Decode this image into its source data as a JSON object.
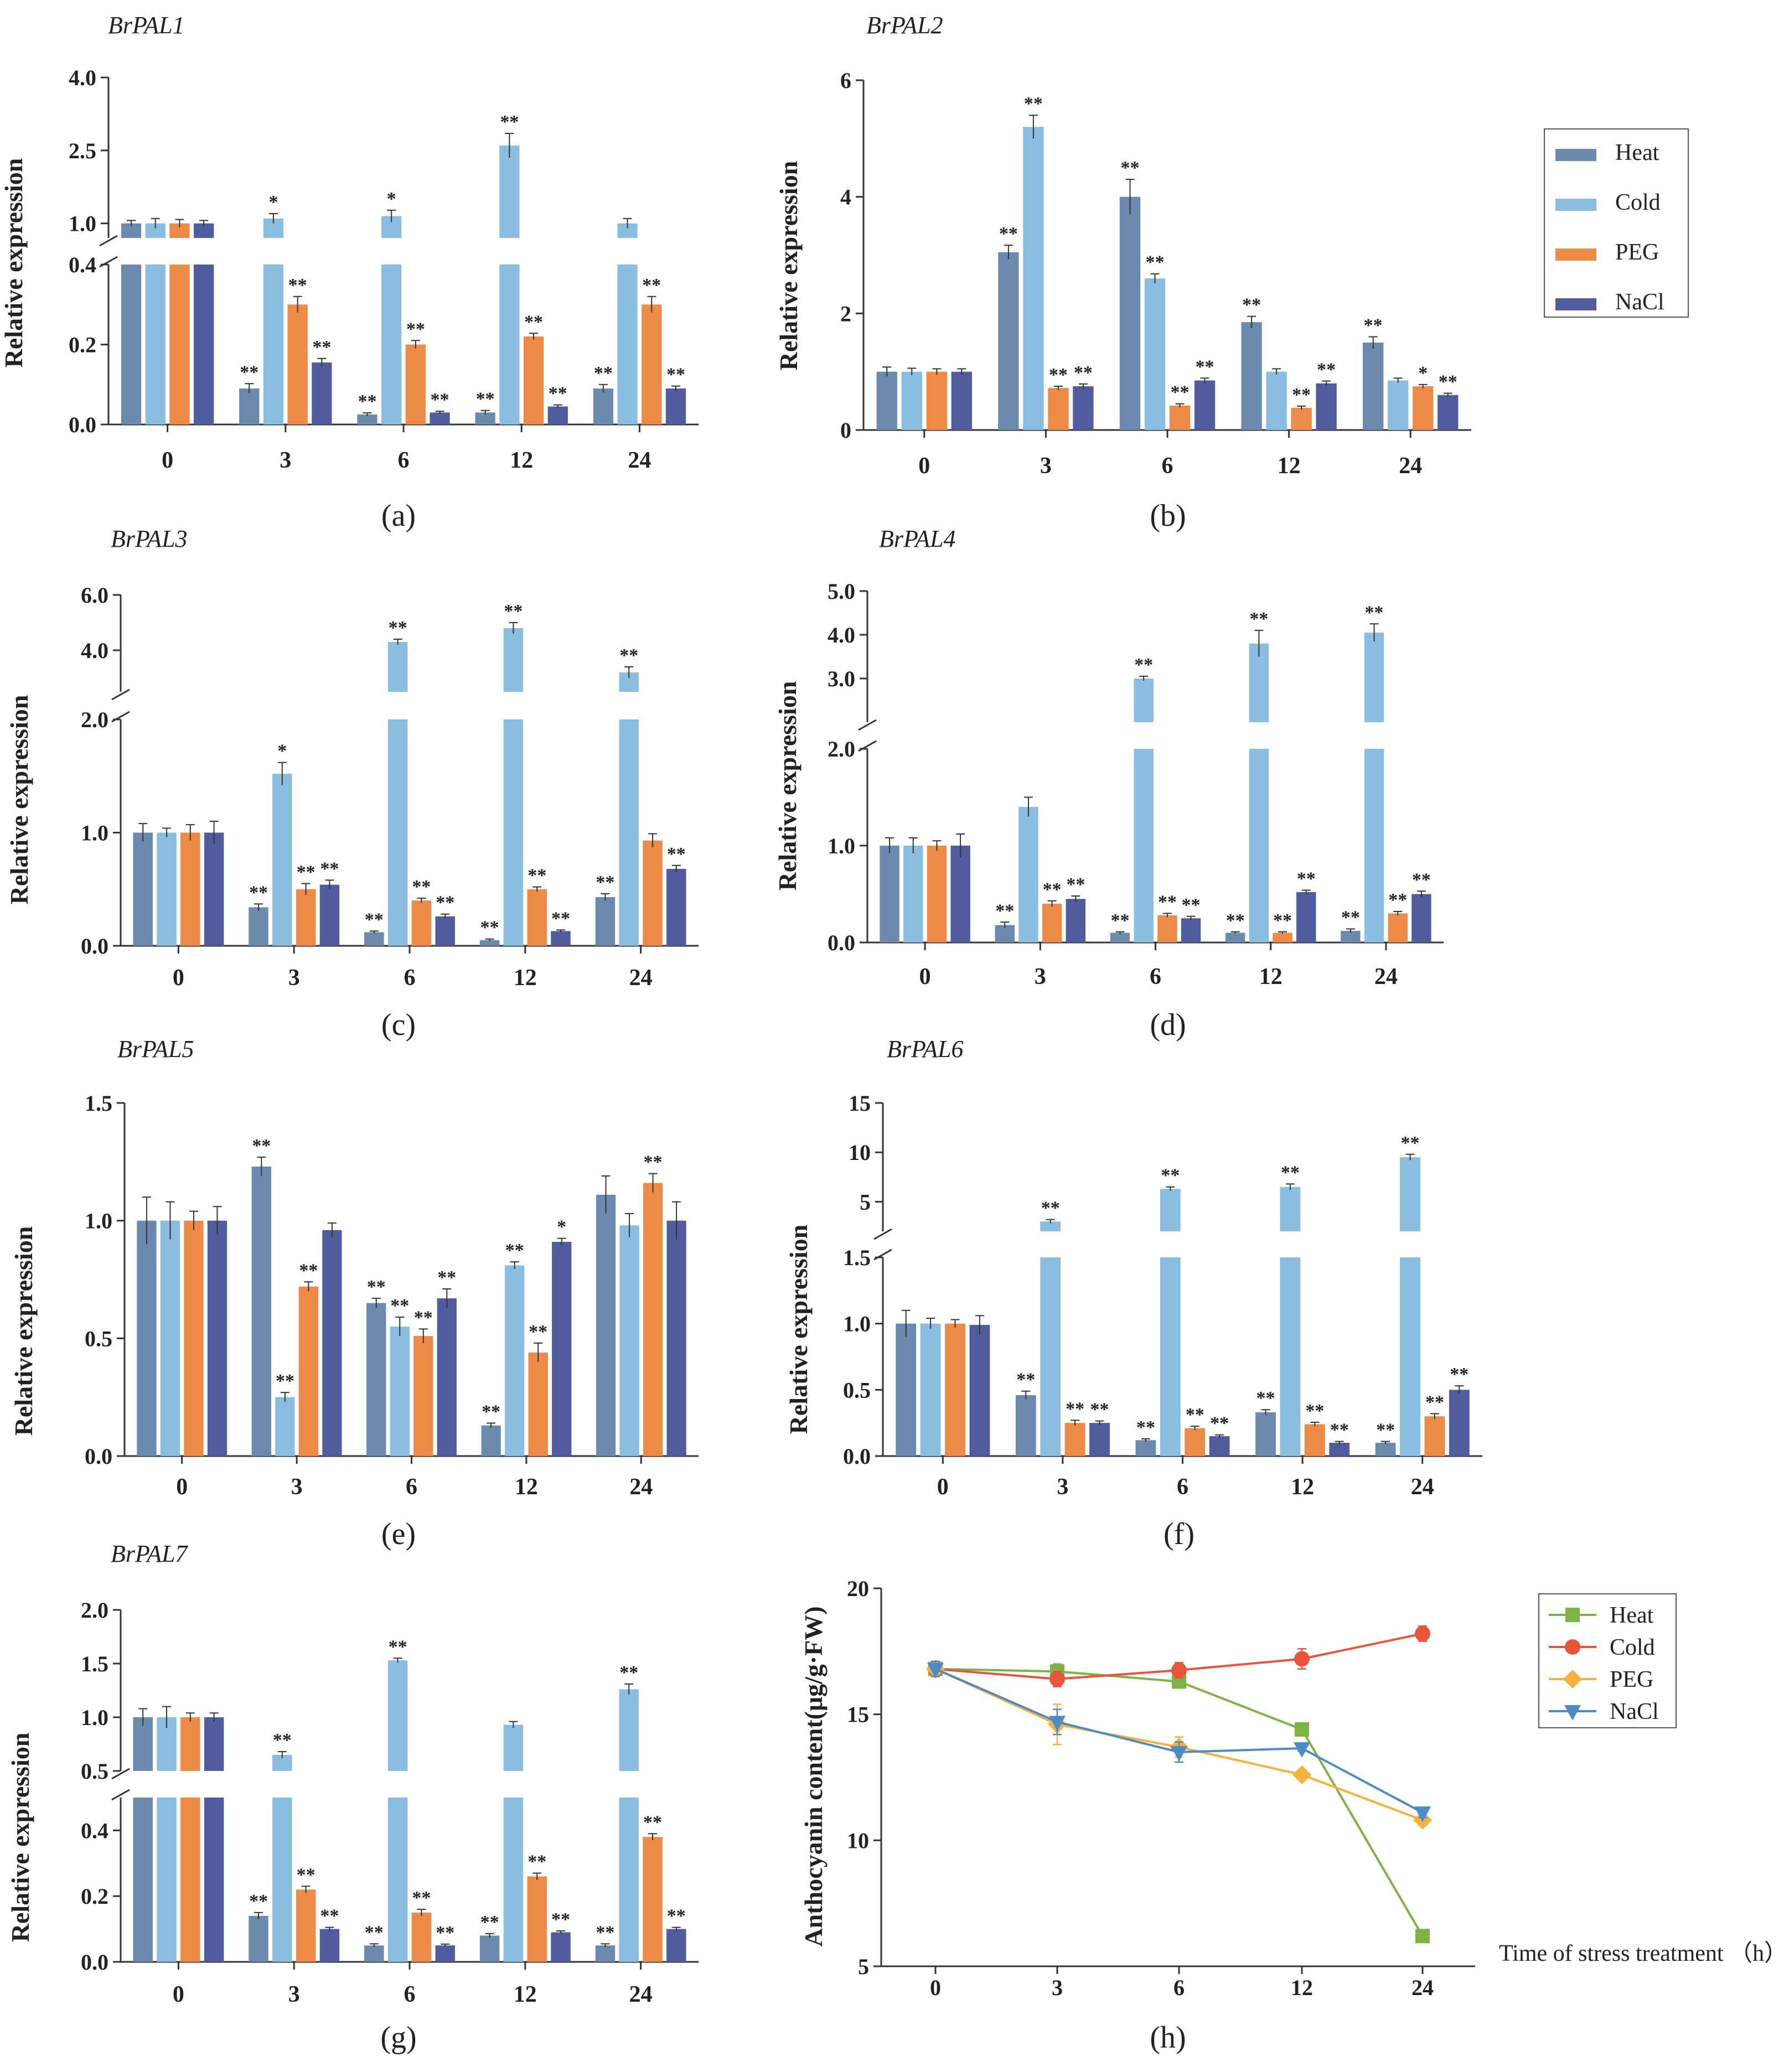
{
  "colors": {
    "Heat": "#6c89ae",
    "Cold": "#8bbde0",
    "PEG": "#ee8a48",
    "NaCl": "#505c9e"
  },
  "line_colors": {
    "Heat": "#7cb342",
    "Cold": "#e8553b",
    "PEG": "#f6b23b",
    "NaCl": "#4c8bc4"
  },
  "chart_data": [
    {
      "id": "a",
      "type": "bar",
      "title": "BrPAL1",
      "label": "(a)",
      "ylabel": "Relative expression",
      "categories": [
        "0",
        "3",
        "6",
        "12",
        "24"
      ],
      "segments": [
        {
          "range": [
            0,
            0.4
          ],
          "ticks": [
            0.0,
            0.2,
            0.4
          ],
          "tick_labels": [
            "0.0",
            "0.2",
            "0.4"
          ]
        },
        {
          "range": [
            0.7,
            4.0
          ],
          "ticks": [
            1.0,
            2.5,
            4.0
          ],
          "tick_labels": [
            "1.0",
            "2.5",
            "4.0"
          ]
        }
      ],
      "series": [
        {
          "name": "Heat",
          "values": [
            1.0,
            0.09,
            0.025,
            0.03,
            0.09
          ],
          "errors": [
            0.06,
            0.012,
            0.004,
            0.005,
            0.01
          ],
          "sig": [
            "",
            "**",
            "**",
            "**",
            "**"
          ]
        },
        {
          "name": "Cold",
          "values": [
            1.0,
            1.1,
            1.15,
            2.6,
            1.0
          ],
          "errors": [
            0.1,
            0.1,
            0.12,
            0.25,
            0.1
          ],
          "sig": [
            "",
            "*",
            "*",
            "**",
            ""
          ]
        },
        {
          "name": "PEG",
          "values": [
            1.0,
            0.3,
            0.2,
            0.22,
            0.3
          ],
          "errors": [
            0.08,
            0.02,
            0.01,
            0.008,
            0.02
          ],
          "sig": [
            "",
            "**",
            "**",
            "**",
            "**"
          ]
        },
        {
          "name": "NaCl",
          "values": [
            1.0,
            0.155,
            0.03,
            0.045,
            0.09
          ],
          "errors": [
            0.06,
            0.01,
            0.003,
            0.004,
            0.006
          ],
          "sig": [
            "",
            "**",
            "**",
            "**",
            "**"
          ]
        }
      ]
    },
    {
      "id": "b",
      "type": "bar",
      "title": "BrPAL2",
      "label": "(b)",
      "ylabel": "Relative expression",
      "categories": [
        "0",
        "3",
        "6",
        "12",
        "24"
      ],
      "segments": [
        {
          "range": [
            0,
            6
          ],
          "ticks": [
            0,
            2,
            4,
            6
          ],
          "tick_labels": [
            "0",
            "2",
            "4",
            "6"
          ]
        }
      ],
      "series": [
        {
          "name": "Heat",
          "values": [
            1.0,
            3.05,
            4.0,
            1.85,
            1.5
          ],
          "errors": [
            0.08,
            0.12,
            0.3,
            0.1,
            0.1
          ],
          "sig": [
            "",
            "**",
            "**",
            "**",
            "**"
          ]
        },
        {
          "name": "Cold",
          "values": [
            1.0,
            5.2,
            2.6,
            1.0,
            0.85
          ],
          "errors": [
            0.06,
            0.2,
            0.08,
            0.05,
            0.04
          ],
          "sig": [
            "",
            "**",
            "**",
            "",
            ""
          ]
        },
        {
          "name": "PEG",
          "values": [
            1.0,
            0.72,
            0.42,
            0.38,
            0.75
          ],
          "errors": [
            0.05,
            0.03,
            0.03,
            0.03,
            0.03
          ],
          "sig": [
            "",
            "**",
            "**",
            "**",
            "*"
          ]
        },
        {
          "name": "NaCl",
          "values": [
            1.0,
            0.75,
            0.85,
            0.8,
            0.6
          ],
          "errors": [
            0.05,
            0.04,
            0.04,
            0.04,
            0.03
          ],
          "sig": [
            "",
            "**",
            "**",
            "**",
            "**"
          ]
        }
      ]
    },
    {
      "id": "c",
      "type": "bar",
      "title": "BrPAL3",
      "label": "(c)",
      "ylabel": "Relative expression",
      "categories": [
        "0",
        "3",
        "6",
        "12",
        "24"
      ],
      "segments": [
        {
          "range": [
            0,
            2.0
          ],
          "ticks": [
            0.0,
            1.0,
            2.0
          ],
          "tick_labels": [
            "0.0",
            "1.0",
            "2.0"
          ]
        },
        {
          "range": [
            2.5,
            6.0
          ],
          "ticks": [
            4.0,
            6.0
          ],
          "tick_labels": [
            "4.0",
            "6.0"
          ]
        }
      ],
      "series": [
        {
          "name": "Heat",
          "values": [
            1.0,
            0.34,
            0.12,
            0.05,
            0.43
          ],
          "errors": [
            0.08,
            0.03,
            0.01,
            0.01,
            0.03
          ],
          "sig": [
            "",
            "**",
            "**",
            "**",
            "**"
          ]
        },
        {
          "name": "Cold",
          "values": [
            1.0,
            1.52,
            4.3,
            4.8,
            3.2
          ],
          "errors": [
            0.04,
            0.1,
            0.1,
            0.2,
            0.2
          ],
          "sig": [
            "",
            "*",
            "**",
            "**",
            "**"
          ]
        },
        {
          "name": "PEG",
          "values": [
            1.0,
            0.5,
            0.4,
            0.5,
            0.93
          ],
          "errors": [
            0.07,
            0.05,
            0.02,
            0.02,
            0.06
          ],
          "sig": [
            "",
            "**",
            "**",
            "**",
            ""
          ]
        },
        {
          "name": "NaCl",
          "values": [
            1.0,
            0.54,
            0.26,
            0.13,
            0.68
          ],
          "errors": [
            0.1,
            0.04,
            0.02,
            0.01,
            0.03
          ],
          "sig": [
            "",
            "**",
            "**",
            "**",
            "**"
          ]
        }
      ]
    },
    {
      "id": "d",
      "type": "bar",
      "title": "BrPAL4",
      "label": "(d)",
      "ylabel": "Relative expression",
      "categories": [
        "0",
        "3",
        "6",
        "12",
        "24"
      ],
      "segments": [
        {
          "range": [
            0,
            2.0
          ],
          "ticks": [
            0.0,
            1.0,
            2.0
          ],
          "tick_labels": [
            "0.0",
            "1.0",
            "2.0"
          ]
        },
        {
          "range": [
            2.0,
            5.0
          ],
          "ticks": [
            3.0,
            4.0,
            5.0
          ],
          "tick_labels": [
            "3.0",
            "4.0",
            "5.0"
          ]
        }
      ],
      "series": [
        {
          "name": "Heat",
          "values": [
            1.0,
            0.18,
            0.1,
            0.1,
            0.12
          ],
          "errors": [
            0.08,
            0.03,
            0.01,
            0.01,
            0.02
          ],
          "sig": [
            "",
            "**",
            "**",
            "**",
            "**"
          ]
        },
        {
          "name": "Cold",
          "values": [
            1.0,
            1.4,
            3.0,
            3.8,
            4.05
          ],
          "errors": [
            0.08,
            0.1,
            0.05,
            0.3,
            0.2
          ],
          "sig": [
            "",
            "",
            "**",
            "**",
            "**"
          ]
        },
        {
          "name": "PEG",
          "values": [
            1.0,
            0.4,
            0.28,
            0.1,
            0.3
          ],
          "errors": [
            0.05,
            0.03,
            0.02,
            0.01,
            0.02
          ],
          "sig": [
            "",
            "**",
            "**",
            "**",
            "**"
          ]
        },
        {
          "name": "NaCl",
          "values": [
            1.0,
            0.45,
            0.25,
            0.52,
            0.5
          ],
          "errors": [
            0.12,
            0.03,
            0.02,
            0.02,
            0.03
          ],
          "sig": [
            "",
            "**",
            "**",
            "**",
            "**"
          ]
        }
      ]
    },
    {
      "id": "e",
      "type": "bar",
      "title": "BrPAL5",
      "label": "(e)",
      "ylabel": "Relative expression",
      "categories": [
        "0",
        "3",
        "6",
        "12",
        "24"
      ],
      "segments": [
        {
          "range": [
            0,
            1.5
          ],
          "ticks": [
            0.0,
            0.5,
            1.0,
            1.5
          ],
          "tick_labels": [
            "0.0",
            "0.5",
            "1.0",
            "1.5"
          ]
        }
      ],
      "series": [
        {
          "name": "Heat",
          "values": [
            1.0,
            1.23,
            0.65,
            0.13,
            1.11
          ],
          "errors": [
            0.1,
            0.04,
            0.02,
            0.01,
            0.08
          ],
          "sig": [
            "",
            "**",
            "**",
            "**",
            ""
          ]
        },
        {
          "name": "Cold",
          "values": [
            1.0,
            0.25,
            0.55,
            0.81,
            0.98
          ],
          "errors": [
            0.08,
            0.02,
            0.04,
            0.015,
            0.05
          ],
          "sig": [
            "",
            "**",
            "**",
            "**",
            ""
          ]
        },
        {
          "name": "PEG",
          "values": [
            1.0,
            0.72,
            0.51,
            0.44,
            1.16
          ],
          "errors": [
            0.04,
            0.02,
            0.03,
            0.04,
            0.04
          ],
          "sig": [
            "",
            "**",
            "**",
            "**",
            "**"
          ]
        },
        {
          "name": "NaCl",
          "values": [
            1.0,
            0.96,
            0.67,
            0.91,
            1.0
          ],
          "errors": [
            0.06,
            0.03,
            0.04,
            0.015,
            0.08
          ],
          "sig": [
            "",
            "",
            "**",
            "*",
            ""
          ]
        }
      ]
    },
    {
      "id": "f",
      "type": "bar",
      "title": "BrPAL6",
      "label": "(f)",
      "ylabel": "Relative expression",
      "categories": [
        "0",
        "3",
        "6",
        "12",
        "24"
      ],
      "segments": [
        {
          "range": [
            0,
            1.5
          ],
          "ticks": [
            0.0,
            0.5,
            1.0,
            1.5
          ],
          "tick_labels": [
            "0.0",
            "0.5",
            "1.0",
            "1.5"
          ]
        },
        {
          "range": [
            2.0,
            15.0
          ],
          "ticks": [
            5,
            10,
            15
          ],
          "tick_labels": [
            "5",
            "10",
            "15"
          ]
        }
      ],
      "series": [
        {
          "name": "Heat",
          "values": [
            1.0,
            0.46,
            0.12,
            0.33,
            0.1
          ],
          "errors": [
            0.1,
            0.03,
            0.01,
            0.02,
            0.01
          ],
          "sig": [
            "",
            "**",
            "**",
            "**",
            "**"
          ]
        },
        {
          "name": "Cold",
          "values": [
            1.0,
            3.0,
            6.3,
            6.5,
            9.5
          ],
          "errors": [
            0.04,
            0.2,
            0.2,
            0.3,
            0.3
          ],
          "sig": [
            "",
            "**",
            "**",
            "**",
            "**"
          ]
        },
        {
          "name": "PEG",
          "values": [
            1.0,
            0.25,
            0.21,
            0.24,
            0.3
          ],
          "errors": [
            0.03,
            0.02,
            0.015,
            0.015,
            0.02
          ],
          "sig": [
            "",
            "**",
            "**",
            "**",
            "**"
          ]
        },
        {
          "name": "NaCl",
          "values": [
            0.99,
            0.25,
            0.15,
            0.1,
            0.5
          ],
          "errors": [
            0.07,
            0.015,
            0.01,
            0.01,
            0.03
          ],
          "sig": [
            "",
            "**",
            "**",
            "**",
            "**"
          ]
        }
      ]
    },
    {
      "id": "g",
      "type": "bar",
      "title": "BrPAL7",
      "label": "(g)",
      "ylabel": "Relative expression",
      "categories": [
        "0",
        "3",
        "6",
        "12",
        "24"
      ],
      "segments": [
        {
          "range": [
            0,
            0.5
          ],
          "ticks": [
            0.0,
            0.2,
            0.4
          ],
          "tick_labels": [
            "0.0",
            "0.2",
            "0.4"
          ]
        },
        {
          "range": [
            0.5,
            2.0
          ],
          "ticks": [
            0.5,
            1.0,
            1.5,
            2.0
          ],
          "tick_labels": [
            "0.5",
            "1.0",
            "1.5",
            "2.0"
          ]
        }
      ],
      "series": [
        {
          "name": "Heat",
          "values": [
            1.0,
            0.14,
            0.05,
            0.08,
            0.05
          ],
          "errors": [
            0.08,
            0.01,
            0.005,
            0.006,
            0.005
          ],
          "sig": [
            "",
            "**",
            "**",
            "**",
            "**"
          ]
        },
        {
          "name": "Cold",
          "values": [
            1.0,
            0.65,
            1.53,
            0.93,
            1.26
          ],
          "errors": [
            0.1,
            0.03,
            0.02,
            0.03,
            0.05
          ],
          "sig": [
            "",
            "**",
            "**",
            "",
            "**"
          ]
        },
        {
          "name": "PEG",
          "values": [
            1.0,
            0.22,
            0.15,
            0.26,
            0.38
          ],
          "errors": [
            0.04,
            0.01,
            0.01,
            0.01,
            0.01
          ],
          "sig": [
            "",
            "**",
            "**",
            "**",
            "**"
          ]
        },
        {
          "name": "NaCl",
          "values": [
            1.0,
            0.1,
            0.05,
            0.09,
            0.1
          ],
          "errors": [
            0.04,
            0.005,
            0.004,
            0.004,
            0.005
          ],
          "sig": [
            "",
            "**",
            "**",
            "**",
            "**"
          ]
        }
      ]
    },
    {
      "id": "h",
      "type": "line",
      "title": "",
      "label": "(h)",
      "ylabel": "Anthocyanin content(μg/g·FW)",
      "xlabel": "Time of stress treatment （h）",
      "categories": [
        "0",
        "3",
        "6",
        "12",
        "24"
      ],
      "ylim": [
        5,
        20
      ],
      "ticks": [
        5,
        10,
        15,
        20
      ],
      "tick_labels": [
        "5",
        "10",
        "15",
        "20"
      ],
      "series": [
        {
          "name": "Heat",
          "marker": "square",
          "values": [
            16.8,
            16.7,
            16.3,
            14.4,
            6.2
          ],
          "errors": [
            0.3,
            0.3,
            0.25,
            0.15,
            0.2
          ]
        },
        {
          "name": "Cold",
          "marker": "circle",
          "values": [
            16.8,
            16.4,
            16.75,
            17.2,
            18.2
          ],
          "errors": [
            0.3,
            0.3,
            0.3,
            0.4,
            0.3
          ]
        },
        {
          "name": "PEG",
          "marker": "diamond",
          "values": [
            16.8,
            14.6,
            13.7,
            12.6,
            10.8
          ],
          "errors": [
            0.3,
            0.8,
            0.4,
            0.2,
            0.2
          ]
        },
        {
          "name": "NaCl",
          "marker": "triangle",
          "values": [
            16.8,
            14.7,
            13.5,
            13.65,
            11.1
          ],
          "errors": [
            0.3,
            0.5,
            0.4,
            0.1,
            0.2
          ]
        }
      ]
    }
  ],
  "legend_bar": {
    "items": [
      "Heat",
      "Cold",
      "PEG",
      "NaCl"
    ]
  },
  "legend_line": {
    "items": [
      "Heat",
      "Cold",
      "PEG",
      "NaCl"
    ]
  }
}
